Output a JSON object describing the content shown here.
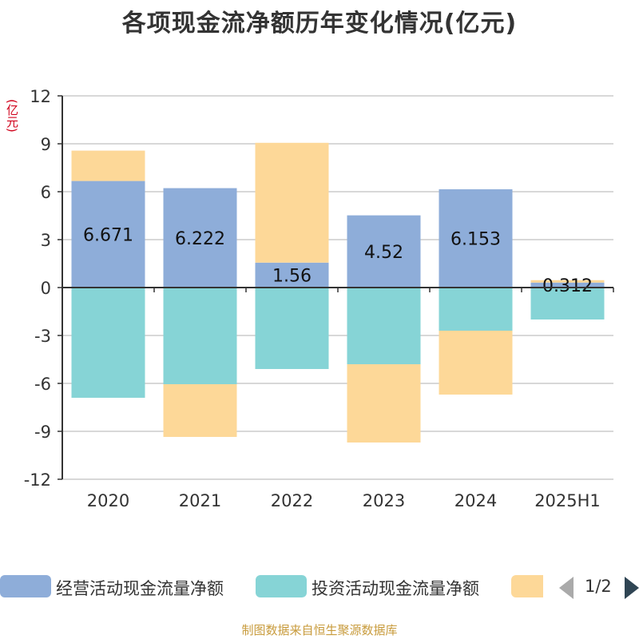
{
  "title": "各项现金流净额历年变化情况(亿元)",
  "unit": "(亿元)",
  "source": "制图数据来自恒生聚源数据库",
  "pager": {
    "text": "1/2"
  },
  "chart_data": {
    "type": "bar",
    "stacked": true,
    "title": "各项现金流净额历年变化情况(亿元)",
    "ylabel": "(亿元)",
    "xlabel": "",
    "ylim": [
      -12,
      12
    ],
    "yticks": [
      12,
      9,
      6,
      3,
      0,
      -3,
      -6,
      -9,
      -12
    ],
    "ytick_labels": [
      "12",
      "9",
      "6",
      "3",
      "0",
      "-3",
      "-6",
      "-9",
      "-12"
    ],
    "grid": true,
    "legend_position": "bottom",
    "categories": [
      "2020",
      "2021",
      "2022",
      "2023",
      "2024",
      "2025H1"
    ],
    "series": [
      {
        "name": "经营活动现金流量净额",
        "color": "#8eadd9",
        "values": [
          6.671,
          6.222,
          1.56,
          4.52,
          6.153,
          0.312
        ],
        "labels": [
          "6.671",
          "6.222",
          "1.56",
          "4.52",
          "6.153",
          "0.312"
        ]
      },
      {
        "name": "投资活动现金流量净额",
        "color": "#86d4d6",
        "values": [
          -6.9,
          -6.05,
          -5.1,
          -4.8,
          -2.7,
          -2.0
        ]
      },
      {
        "name": "",
        "color": "#fdd898",
        "values": [
          1.9,
          -3.3,
          7.5,
          -4.9,
          -4.0,
          0.15
        ]
      }
    ]
  }
}
